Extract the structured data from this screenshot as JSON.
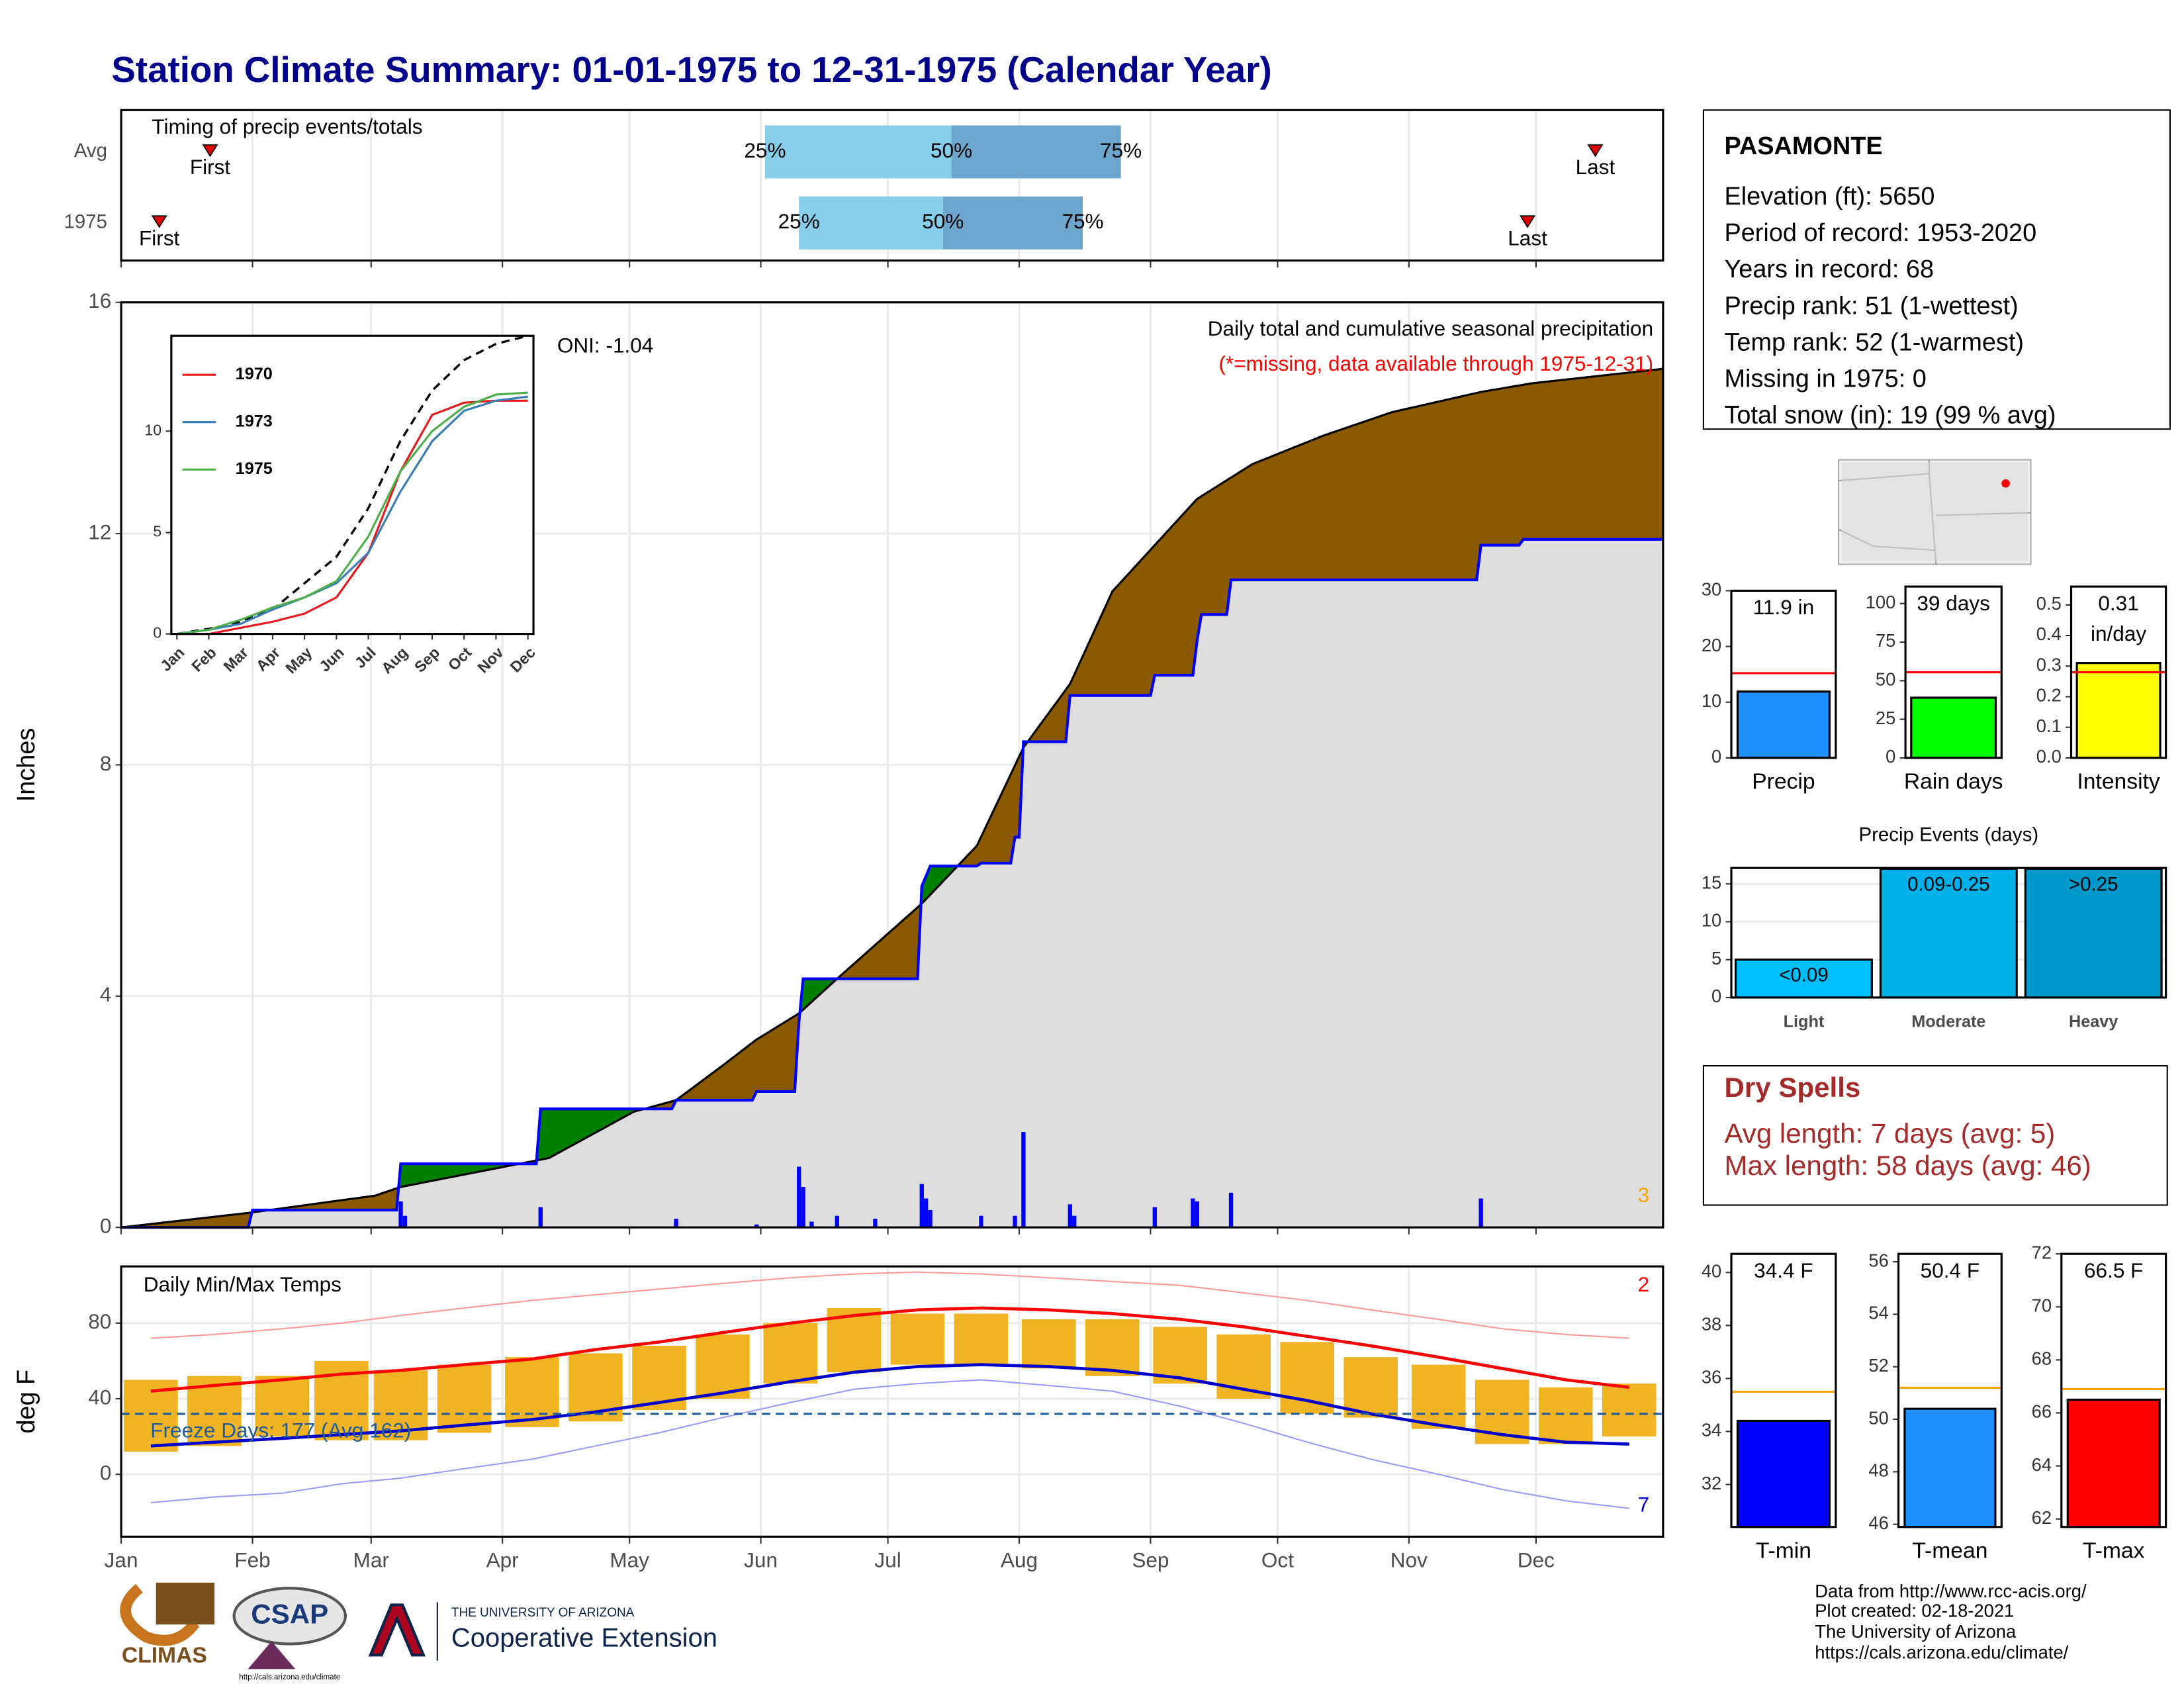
{
  "title": "Station Climate Summary: 01-01-1975 to 12-31-1975 (Calendar Year)",
  "chart_data": [
    {
      "type": "timing",
      "title": "Timing of precip events/totals",
      "categories": [
        "Avg",
        "1975"
      ],
      "first": [
        21,
        9
      ],
      "q25": [
        152,
        160
      ],
      "q50": [
        196,
        194
      ],
      "q75": [
        236,
        227
      ],
      "last": [
        348,
        332
      ],
      "labels": {
        "first": "First",
        "q25": "25%",
        "q50": "50%",
        "q75": "75%",
        "last": "Last"
      },
      "colors": {
        "lower": "#87ceeb",
        "upper": "#6ca6cd",
        "marker": "#e00000"
      },
      "xlim": [
        0,
        364
      ]
    },
    {
      "type": "cumulative",
      "title": "Daily total and cumulative seasonal precipitation",
      "subtitle": "(*=missing, data available through 1975-12-31)",
      "annotation": "ONI: -1.04",
      "record_count": 3,
      "ylabel": "Inches",
      "xlim": [
        0,
        364
      ],
      "ylim": [
        0,
        16
      ],
      "yticks": [
        0,
        4,
        8,
        12,
        16
      ],
      "grid": true,
      "observed": {
        "color": "#0000ff",
        "x": [
          0,
          30,
          31,
          65,
          66,
          98,
          99,
          130,
          131,
          149,
          150,
          159,
          160,
          161,
          188,
          189,
          191,
          202,
          203,
          210,
          211,
          212,
          213,
          223,
          224,
          243,
          244,
          253,
          254,
          255,
          261,
          262,
          320,
          321,
          330,
          331,
          364
        ],
        "values": [
          0,
          0,
          0.3,
          0.3,
          1.1,
          1.1,
          2.05,
          2.05,
          2.2,
          2.2,
          2.35,
          2.35,
          3.55,
          4.3,
          4.3,
          5.9,
          6.25,
          6.25,
          6.3,
          6.3,
          6.75,
          6.75,
          8.4,
          8.4,
          9.2,
          9.2,
          9.55,
          9.55,
          10.15,
          10.6,
          10.6,
          11.2,
          11.2,
          11.8,
          11.8,
          11.9,
          11.9
        ]
      },
      "average": {
        "color": "#000000",
        "x": [
          0,
          30,
          60,
          66,
          101,
          121,
          131,
          142,
          150,
          160,
          169,
          189,
          202,
          213,
          224,
          234,
          254,
          267,
          284,
          300,
          321,
          333,
          364
        ],
        "values": [
          0,
          0.25,
          0.55,
          0.7,
          1.2,
          2.0,
          2.2,
          2.8,
          3.25,
          3.7,
          4.3,
          5.6,
          6.6,
          8.3,
          9.4,
          11.0,
          12.6,
          13.2,
          13.7,
          14.1,
          14.45,
          14.6,
          14.85
        ]
      },
      "daily": {
        "color": "#0000ff",
        "x": [
          66,
          67,
          99,
          131,
          150,
          160,
          161,
          163,
          169,
          178,
          189,
          190,
          191,
          203,
          211,
          213,
          224,
          225,
          244,
          253,
          254,
          262,
          321
        ],
        "values": [
          0.45,
          0.2,
          0.35,
          0.15,
          0.05,
          1.05,
          0.7,
          0.1,
          0.2,
          0.15,
          0.75,
          0.5,
          0.3,
          0.2,
          0.2,
          1.65,
          0.4,
          0.2,
          0.35,
          0.5,
          0.45,
          0.6,
          0.5
        ]
      },
      "fills": {
        "deficit": "#8b5a00",
        "surplus": "#008000",
        "base": "#dedede"
      }
    },
    {
      "type": "line",
      "categories": [
        "Jan",
        "Feb",
        "Mar",
        "Apr",
        "May",
        "Jun",
        "Jul",
        "Aug",
        "Sep",
        "Oct",
        "Nov",
        "Dec"
      ],
      "ylim": [
        0,
        14.7
      ],
      "yticks": [
        0,
        5,
        10
      ],
      "series": [
        {
          "name": "1970",
          "color": "#e41a1c",
          "values": [
            0,
            0,
            0.3,
            0.6,
            1.0,
            1.8,
            4.0,
            8.0,
            10.8,
            11.4,
            11.5,
            11.5
          ]
        },
        {
          "name": "1973",
          "color": "#377eb8",
          "values": [
            0,
            0.2,
            0.5,
            1.2,
            1.8,
            2.5,
            4.0,
            7.0,
            9.5,
            11.0,
            11.5,
            11.7
          ]
        },
        {
          "name": "1975",
          "color": "#4daf4a",
          "values": [
            0,
            0.2,
            0.7,
            1.3,
            1.8,
            2.6,
            4.8,
            8.0,
            10.0,
            11.2,
            11.8,
            11.9
          ]
        }
      ],
      "average": {
        "color": "#000000",
        "values": [
          0,
          0.25,
          0.6,
          1.2,
          2.5,
          3.8,
          6.2,
          9.5,
          12.0,
          13.5,
          14.3,
          14.7
        ]
      }
    },
    {
      "type": "temperature",
      "title": "Daily Min/Max Temps",
      "ylabel": "deg F",
      "x": [
        7,
        22,
        38,
        52,
        66,
        81,
        97,
        112,
        127,
        142,
        158,
        173,
        188,
        203,
        219,
        234,
        250,
        265,
        280,
        295,
        311,
        326,
        341,
        356
      ],
      "xlim": [
        0,
        364
      ],
      "xticks": [
        {
          "value": 0,
          "label": "Jan"
        },
        {
          "value": 31,
          "label": "Feb"
        },
        {
          "value": 59,
          "label": "Mar"
        },
        {
          "value": 90,
          "label": "Apr"
        },
        {
          "value": 120,
          "label": "May"
        },
        {
          "value": 151,
          "label": "Jun"
        },
        {
          "value": 181,
          "label": "Jul"
        },
        {
          "value": 212,
          "label": "Aug"
        },
        {
          "value": 243,
          "label": "Sep"
        },
        {
          "value": 273,
          "label": "Oct"
        },
        {
          "value": 304,
          "label": "Nov"
        },
        {
          "value": 334,
          "label": "Dec"
        }
      ],
      "ylim": [
        -33,
        110
      ],
      "yticks": [
        0,
        40,
        80
      ],
      "grid": true,
      "bar_color": "#f0b323",
      "observed_max": [
        50,
        52,
        52,
        60,
        55,
        58,
        62,
        64,
        68,
        74,
        80,
        88,
        85,
        85,
        82,
        82,
        78,
        74,
        70,
        62,
        58,
        50,
        46,
        48
      ],
      "observed_min": [
        12,
        15,
        20,
        18,
        18,
        22,
        25,
        28,
        34,
        40,
        48,
        54,
        58,
        58,
        56,
        52,
        48,
        40,
        32,
        30,
        24,
        16,
        16,
        20
      ],
      "avg_max": {
        "color": "#ff0000",
        "values": [
          44,
          47,
          50,
          53,
          55,
          58,
          61,
          66,
          70,
          75,
          80,
          84,
          87,
          88,
          87,
          85,
          82,
          78,
          73,
          68,
          62,
          56,
          50,
          46
        ]
      },
      "avg_min": {
        "color": "#0000cc",
        "values": [
          15,
          17,
          19,
          21,
          23,
          26,
          29,
          33,
          38,
          43,
          49,
          54,
          57,
          58,
          57,
          55,
          51,
          45,
          39,
          32,
          26,
          21,
          17,
          16
        ]
      },
      "record_max": {
        "color": "#ff9a9a",
        "values": [
          72,
          74,
          77,
          80,
          84,
          88,
          92,
          95,
          98,
          101,
          104,
          106,
          107,
          106,
          104,
          102,
          100,
          96,
          92,
          87,
          82,
          77,
          74,
          72
        ]
      },
      "record_min": {
        "color": "#9a9aff",
        "values": [
          -15,
          -12,
          -10,
          -5,
          -2,
          3,
          8,
          15,
          22,
          30,
          38,
          45,
          48,
          50,
          47,
          44,
          36,
          27,
          17,
          8,
          0,
          -8,
          -14,
          -18
        ]
      },
      "freeze": {
        "value": 32,
        "label": "Freeze Days: 177 (Avg 162)",
        "color": "#1f5c99"
      },
      "record_high_count": 2,
      "record_low_count": 7
    },
    {
      "type": "bar",
      "categories": [
        "Precip"
      ],
      "values": [
        11.9
      ],
      "value_labels": [
        "11.9 in"
      ],
      "average": 15.2,
      "average_color": "#ff0000",
      "color": "#1e90ff",
      "ylim": [
        0,
        30
      ],
      "yticks": [
        0,
        10,
        20,
        30
      ]
    },
    {
      "type": "bar",
      "categories": [
        "Rain days"
      ],
      "values": [
        39
      ],
      "value_labels": [
        "39 days"
      ],
      "average": 55.5,
      "average_color": "#ff0000",
      "color": "#00ff00",
      "ylim": [
        0,
        111
      ],
      "yticks": [
        0,
        25,
        50,
        75,
        100
      ]
    },
    {
      "type": "bar",
      "categories": [
        "Intensity"
      ],
      "values": [
        0.31
      ],
      "value_labels": [
        "0.31 in/day"
      ],
      "average": 0.28,
      "average_color": "#ff0000",
      "color": "#ffff00",
      "ylim": [
        0,
        0.56
      ],
      "yticks": [
        {
          "value": 0,
          "label": "0.0"
        },
        0.1,
        0.2,
        0.3,
        0.4,
        0.5
      ]
    },
    {
      "type": "bar",
      "title": "Precip Events (days)",
      "categories": [
        "Light",
        "Moderate",
        "Heavy"
      ],
      "values": [
        5,
        17,
        17
      ],
      "value_labels": [
        "<0.09",
        "0.09-0.25",
        ">0.25"
      ],
      "colors": [
        "#00bfff",
        "#00b0e8",
        "#0099cc"
      ],
      "ylim": [
        0,
        17.1
      ],
      "yticks": [
        0,
        5,
        10,
        15
      ],
      "grid": true
    },
    {
      "type": "bar",
      "categories": [
        "T-min"
      ],
      "values": [
        34.4
      ],
      "value_labels": [
        "34.4 F"
      ],
      "average": 35.5,
      "average_color": "#ffa500",
      "color": "#0000ff",
      "ylim": [
        30.4,
        40.7
      ],
      "yticks": [
        32,
        34,
        36,
        38,
        40
      ]
    },
    {
      "type": "bar",
      "categories": [
        "T-mean"
      ],
      "values": [
        50.4
      ],
      "value_labels": [
        "50.4 F"
      ],
      "average": 51.2,
      "average_color": "#ffa500",
      "color": "#1e90ff",
      "ylim": [
        45.9,
        56.3
      ],
      "yticks": [
        46,
        48,
        50,
        52,
        54,
        56
      ]
    },
    {
      "type": "bar",
      "categories": [
        "T-max"
      ],
      "values": [
        66.5
      ],
      "value_labels": [
        "66.5 F"
      ],
      "average": 66.9,
      "average_color": "#ffa500",
      "color": "#ff0000",
      "ylim": [
        61.7,
        72
      ],
      "yticks": [
        62,
        64,
        66,
        68,
        70,
        72
      ]
    }
  ],
  "station": {
    "name": "PASAMONTE",
    "lines": [
      "Elevation (ft): 5650",
      "Period of record: 1953-2020",
      "Years in record: 68",
      "Precip rank: 51 (1-wettest)",
      "Temp rank: 52 (1-warmest)",
      "Missing in 1975: 0",
      "Total snow (in): 19 (99 % avg)"
    ]
  },
  "dry_spells": {
    "title": "Dry Spells",
    "lines": [
      "Avg length: 7 days (avg: 5)",
      "Max length: 58 days (avg: 46)"
    ]
  },
  "footer": [
    "Data from http://www.rcc-acis.org/",
    "Plot created: 02-18-2021",
    "The University of Arizona",
    "https://cals.arizona.edu/climate/"
  ],
  "logos": {
    "climas": "CLIMAS",
    "csap": "CSAP",
    "csap_url": "http://cals.arizona.edu/climate",
    "university": "THE UNIVERSITY OF ARIZONA",
    "extension": "Cooperative Extension"
  }
}
